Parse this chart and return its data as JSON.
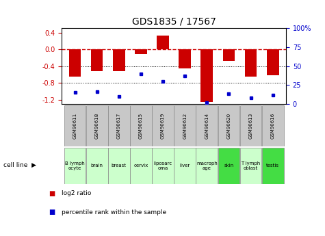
{
  "title": "GDS1835 / 17567",
  "gsm_labels": [
    "GSM90611",
    "GSM90618",
    "GSM90617",
    "GSM90615",
    "GSM90619",
    "GSM90612",
    "GSM90614",
    "GSM90620",
    "GSM90613",
    "GSM90616"
  ],
  "cell_lines": [
    "B lymph\nocyte",
    "brain",
    "breast",
    "cervix",
    "liposarc\noma",
    "liver",
    "macroph\nage",
    "skin",
    "T lymph\noblast",
    "testis"
  ],
  "cell_line_colors": [
    "#ccffcc",
    "#ccffcc",
    "#ccffcc",
    "#ccffcc",
    "#ccffcc",
    "#ccffcc",
    "#ccffcc",
    "#44dd44",
    "#ccffcc",
    "#44dd44"
  ],
  "log2_ratio": [
    -0.65,
    -0.52,
    -0.52,
    -0.12,
    0.33,
    -0.45,
    -1.25,
    -0.28,
    -0.65,
    -0.62
  ],
  "percentile_rank": [
    15,
    16,
    10,
    40,
    30,
    37,
    2,
    13,
    8,
    12
  ],
  "bar_color": "#cc0000",
  "dot_color": "#0000cc",
  "ylim_left": [
    -1.3,
    0.5
  ],
  "ylim_right": [
    0,
    100
  ],
  "yticks_left": [
    0.4,
    0.0,
    -0.4,
    -0.8,
    -1.2
  ],
  "yticks_right": [
    100,
    75,
    50,
    25,
    0
  ],
  "zero_line_color": "#cc0000",
  "grid_color": "#000000",
  "legend_items": [
    "log2 ratio",
    "percentile rank within the sample"
  ],
  "gsm_bg_color": "#c8c8c8",
  "gsm_border_color": "#888888",
  "cell_border_color": "#888888"
}
